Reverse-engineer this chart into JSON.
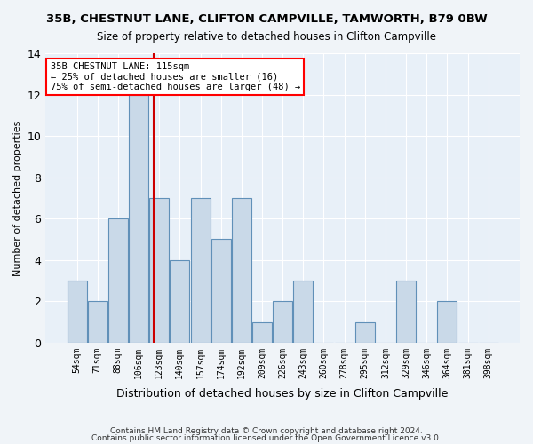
{
  "title1": "35B, CHESTNUT LANE, CLIFTON CAMPVILLE, TAMWORTH, B79 0BW",
  "title2": "Size of property relative to detached houses in Clifton Campville",
  "xlabel": "Distribution of detached houses by size in Clifton Campville",
  "ylabel": "Number of detached properties",
  "footer1": "Contains HM Land Registry data © Crown copyright and database right 2024.",
  "footer2": "Contains public sector information licensed under the Open Government Licence v3.0.",
  "annotation_title": "35B CHESTNUT LANE: 115sqm",
  "annotation_line1": "← 25% of detached houses are smaller (16)",
  "annotation_line2": "75% of semi-detached houses are larger (48) →",
  "bar_color": "#c9d9e8",
  "bar_edge_color": "#6090b8",
  "red_line_color": "#cc0000",
  "bins": [
    "54sqm",
    "71sqm",
    "88sqm",
    "106sqm",
    "123sqm",
    "140sqm",
    "157sqm",
    "174sqm",
    "192sqm",
    "209sqm",
    "226sqm",
    "243sqm",
    "260sqm",
    "278sqm",
    "295sqm",
    "312sqm",
    "329sqm",
    "346sqm",
    "364sqm",
    "381sqm",
    "398sqm"
  ],
  "values": [
    3,
    2,
    6,
    12,
    7,
    4,
    7,
    5,
    7,
    1,
    2,
    3,
    0,
    0,
    1,
    0,
    3,
    0,
    2,
    0,
    0
  ],
  "red_line_x": 3.75,
  "ylim": [
    0,
    14
  ],
  "yticks": [
    0,
    2,
    4,
    6,
    8,
    10,
    12,
    14
  ],
  "bg_color": "#f0f4f8",
  "plot_bg_color": "#e8f0f8"
}
